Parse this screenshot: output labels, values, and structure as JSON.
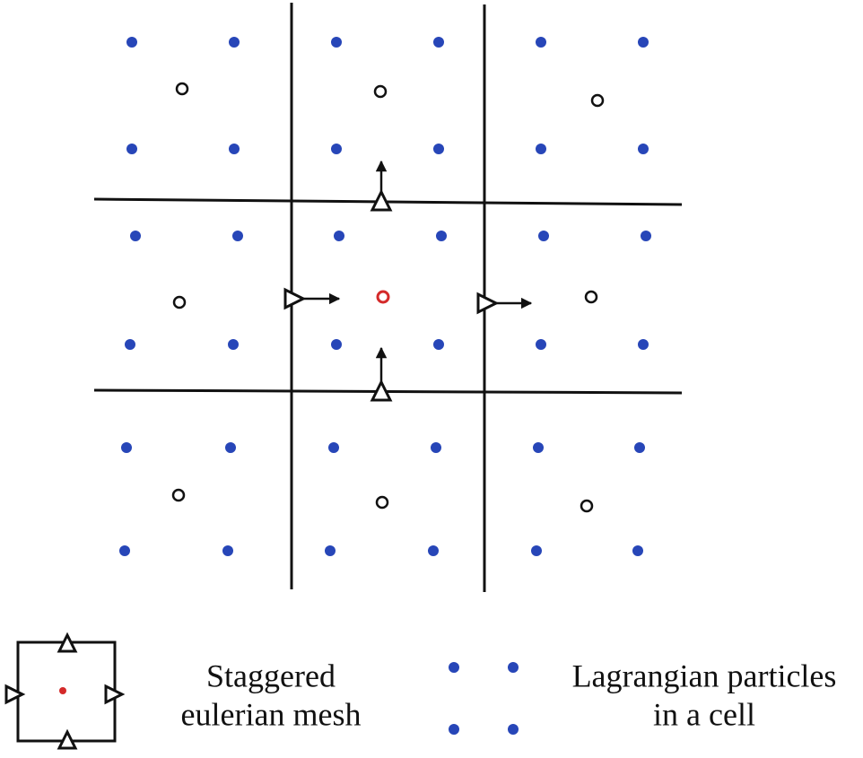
{
  "legend": [
    {
      "lines": [
        "Staggered",
        "eulerian mesh"
      ]
    },
    {
      "lines": [
        "Lagrangian particles",
        "in a cell"
      ]
    }
  ]
}
